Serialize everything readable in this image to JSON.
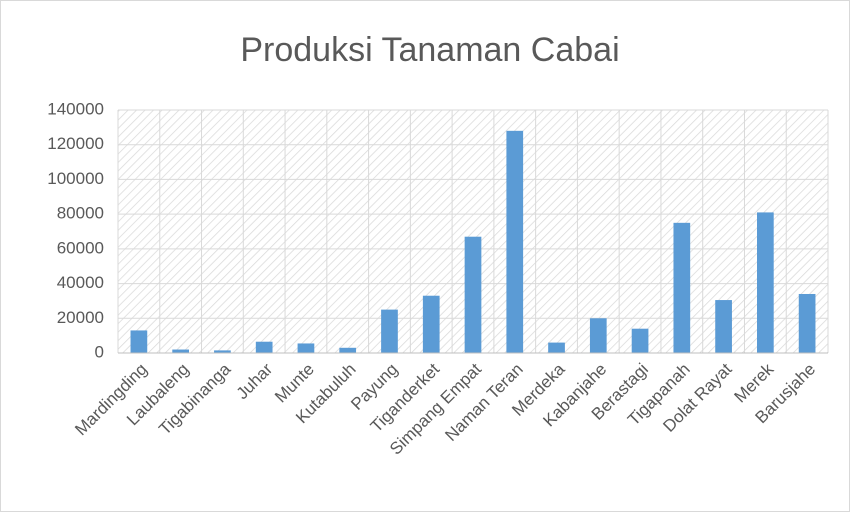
{
  "chart_data": {
    "type": "bar",
    "title": "Produksi Tanaman Cabai",
    "categories": [
      "Mardingding",
      "Laubaleng",
      "Tigabinanga",
      "Juhar",
      "Munte",
      "Kutabuluh",
      "Payung",
      "Tiganderket",
      "Simpang Empat",
      "Naman Teran",
      "Merdeka",
      "Kabanjahe",
      "Berastagi",
      "Tigapanah",
      "Dolat Rayat",
      "Merek",
      "Barusjahe"
    ],
    "values": [
      13000,
      2000,
      1500,
      6500,
      5500,
      3000,
      25000,
      33000,
      67000,
      128000,
      6000,
      20000,
      14000,
      75000,
      30500,
      81000,
      34000
    ],
    "color": "#5b9bd5",
    "ylim": [
      0,
      140000
    ],
    "yticks": [
      0,
      20000,
      40000,
      60000,
      80000,
      100000,
      120000,
      140000
    ],
    "grid": true
  }
}
